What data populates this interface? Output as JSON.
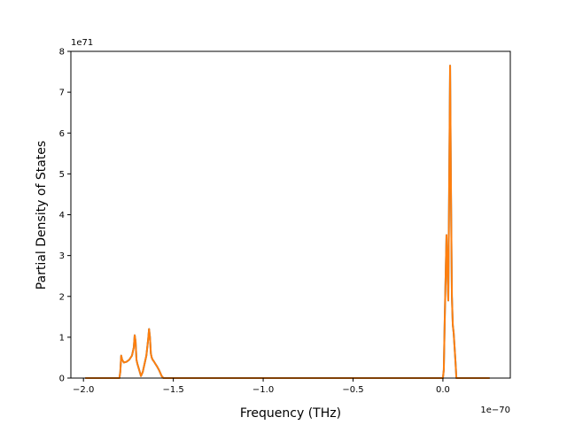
{
  "chart_data": {
    "type": "line",
    "xlabel": "Frequency (THz)",
    "ylabel": "Partial Density of States",
    "x_offset_text": "1e−70",
    "y_offset_text": "1e71",
    "xlim": [
      -2.07,
      0.375
    ],
    "ylim": [
      0,
      8
    ],
    "x_ticks": [
      -2.0,
      -1.5,
      -1.0,
      -0.5,
      0.0
    ],
    "x_tick_labels": [
      "−2.0",
      "−1.5",
      "−1.0",
      "−0.5",
      "0.0"
    ],
    "y_ticks": [
      0,
      1,
      2,
      3,
      4,
      5,
      6,
      7,
      8
    ],
    "y_tick_labels": [
      "0",
      "1",
      "2",
      "3",
      "4",
      "5",
      "6",
      "7",
      "8"
    ],
    "grid": false,
    "colors": {
      "series_back": "#1f77b4",
      "series_front": "#ff7f0e"
    },
    "series": [
      {
        "x": [
          -1.99,
          -1.8,
          -1.795,
          -1.79,
          -1.785,
          -1.775,
          -1.76,
          -1.745,
          -1.73,
          -1.72,
          -1.715,
          -1.71,
          -1.705,
          -1.7,
          -1.69,
          -1.68,
          -1.67,
          -1.66,
          -1.65,
          -1.64,
          -1.635,
          -1.63,
          -1.625,
          -1.62,
          -1.615,
          -1.61,
          -1.6,
          -1.59,
          -1.58,
          -1.565,
          -1.555,
          -1.55,
          -1.54,
          0.0,
          0.005,
          0.01,
          0.02,
          0.025,
          0.03,
          0.035,
          0.04,
          0.045,
          0.05,
          0.055,
          0.06,
          0.07,
          0.075,
          0.08,
          0.1,
          0.26
        ],
        "values": [
          0,
          0,
          0.15,
          0.55,
          0.45,
          0.38,
          0.4,
          0.45,
          0.55,
          0.75,
          1.05,
          0.9,
          0.45,
          0.35,
          0.2,
          0.05,
          0.15,
          0.35,
          0.55,
          0.95,
          1.2,
          1.0,
          0.6,
          0.5,
          0.45,
          0.42,
          0.35,
          0.28,
          0.2,
          0.05,
          0,
          0,
          0,
          0,
          0.2,
          1.4,
          3.5,
          2.6,
          1.9,
          4.8,
          7.65,
          4.5,
          2.0,
          1.3,
          1.1,
          0.4,
          0,
          0,
          0,
          0
        ]
      },
      {
        "x": [
          -1.99,
          -1.8,
          -1.795,
          -1.79,
          -1.785,
          -1.775,
          -1.76,
          -1.745,
          -1.73,
          -1.72,
          -1.715,
          -1.71,
          -1.705,
          -1.7,
          -1.69,
          -1.68,
          -1.67,
          -1.66,
          -1.65,
          -1.64,
          -1.635,
          -1.63,
          -1.625,
          -1.62,
          -1.615,
          -1.61,
          -1.6,
          -1.59,
          -1.58,
          -1.565,
          -1.555,
          -1.55,
          -1.54,
          0.0,
          0.005,
          0.01,
          0.02,
          0.025,
          0.03,
          0.035,
          0.04,
          0.045,
          0.05,
          0.055,
          0.06,
          0.07,
          0.075,
          0.08,
          0.1,
          0.26
        ],
        "values": [
          0,
          0,
          0.15,
          0.55,
          0.45,
          0.38,
          0.4,
          0.45,
          0.55,
          0.75,
          1.05,
          0.9,
          0.45,
          0.35,
          0.2,
          0.05,
          0.15,
          0.35,
          0.55,
          0.95,
          1.2,
          1.0,
          0.6,
          0.5,
          0.45,
          0.42,
          0.35,
          0.28,
          0.2,
          0.05,
          0,
          0,
          0,
          0,
          0.2,
          1.4,
          3.5,
          2.6,
          1.9,
          4.8,
          7.65,
          4.5,
          2.0,
          1.3,
          1.1,
          0.4,
          0,
          0,
          0,
          0
        ]
      }
    ]
  }
}
